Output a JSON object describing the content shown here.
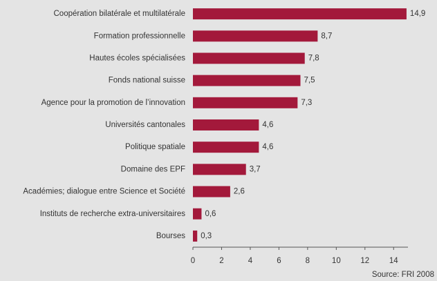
{
  "chart_data": {
    "type": "hbar",
    "categories": [
      "Coopération bilatérale et multilatérale",
      "Formation professionnelle",
      "Hautes écoles spécialisées",
      "Fonds national suisse",
      "Agence pour la promotion de l’innovation",
      "Universités cantonales",
      "Politique spatiale",
      "Domaine des EPF",
      "Académies; dialogue entre Science et Société",
      "Instituts de recherche extra-universitaires",
      "Bourses"
    ],
    "values": [
      14.9,
      8.7,
      7.8,
      7.5,
      7.3,
      4.6,
      4.6,
      3.7,
      2.6,
      0.6,
      0.3
    ],
    "value_labels": [
      "14,9",
      "8,7",
      "7,8",
      "7,5",
      "7,3",
      "4,6",
      "4,6",
      "3,7",
      "2,6",
      "0,6",
      "0,3"
    ],
    "color": "#a3193b",
    "xlim": [
      0,
      15
    ],
    "xticks": [
      0,
      2,
      4,
      6,
      8,
      10,
      12,
      14
    ],
    "source": "Source: FRI 2008"
  }
}
